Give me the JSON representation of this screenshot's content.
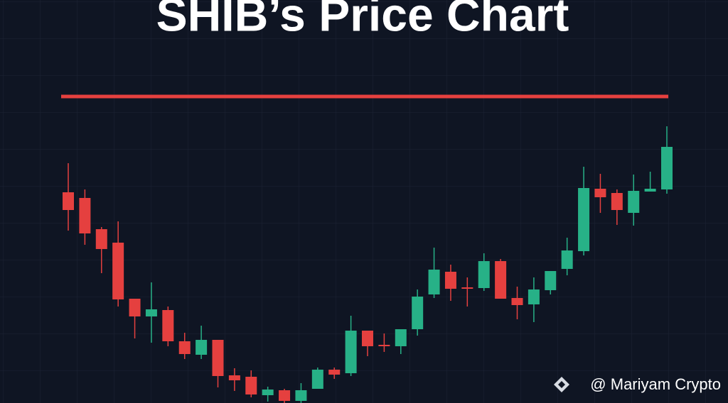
{
  "chart_data": {
    "type": "candlestick",
    "title": "SHIB’s Price Chart",
    "watermark": "@ Mariyam Crypto",
    "open": [
      297,
      289,
      245,
      226,
      147,
      122,
      131,
      87,
      68,
      89,
      39,
      37,
      11,
      18,
      3,
      20,
      47,
      42,
      102,
      82,
      80,
      104,
      153,
      185,
      163,
      162,
      200,
      148,
      139,
      159,
      189,
      214,
      302,
      296,
      268,
      298,
      301
    ],
    "high": [
      338,
      301,
      248,
      256,
      147,
      170,
      136,
      99,
      109,
      89,
      49,
      46,
      23,
      20,
      28,
      50,
      50,
      123,
      102,
      98,
      104,
      160,
      219,
      195,
      177,
      211,
      203,
      164,
      177,
      186,
      233,
      333,
      323,
      301,
      322,
      326,
      390
    ],
    "low": [
      243,
      223,
      183,
      136,
      91,
      85,
      80,
      62,
      62,
      22,
      17,
      8,
      2,
      0,
      0,
      20,
      34,
      38,
      66,
      72,
      69,
      95,
      148,
      144,
      136,
      158,
      147,
      118,
      114,
      153,
      180,
      208,
      268,
      251,
      250,
      298,
      295
    ],
    "close": [
      272,
      239,
      217,
      146,
      122,
      132,
      87,
      69,
      89,
      38,
      32,
      12,
      19,
      3,
      18,
      47,
      40,
      102,
      80,
      80,
      104,
      150,
      188,
      161,
      161,
      200,
      147,
      138,
      160,
      186,
      215,
      303,
      290,
      272,
      299,
      302,
      361
    ],
    "up_color": "#27b187",
    "down_color": "#e5403f",
    "resistance": 432,
    "resistance_color": "#e5403f",
    "ylim": [
      0,
      568
    ]
  }
}
